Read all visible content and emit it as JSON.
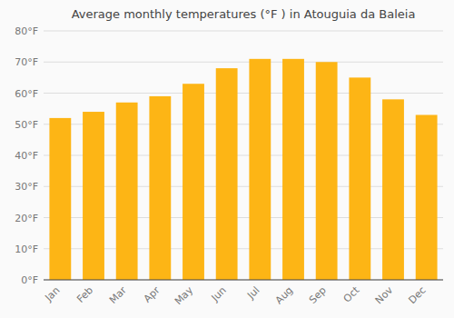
{
  "chart_data": {
    "type": "bar",
    "title": "Average monthly temperatures (°F ) in Atouguia da Baleia",
    "categories": [
      "Jan",
      "Feb",
      "Mar",
      "Apr",
      "May",
      "Jun",
      "Jul",
      "Aug",
      "Sep",
      "Oct",
      "Nov",
      "Dec"
    ],
    "values": [
      52,
      54,
      57,
      59,
      63,
      68,
      71,
      71,
      70,
      65,
      58,
      53
    ],
    "color": "#FDB515",
    "ylim": [
      0,
      80
    ],
    "yticks": [
      {
        "value": 0,
        "label": "0°F"
      },
      {
        "value": 10,
        "label": "10°F"
      },
      {
        "value": 20,
        "label": "20°F"
      },
      {
        "value": 30,
        "label": "30°F"
      },
      {
        "value": 40,
        "label": "40°F"
      },
      {
        "value": 50,
        "label": "50°F"
      },
      {
        "value": 60,
        "label": "60°F"
      },
      {
        "value": 70,
        "label": "70°F"
      },
      {
        "value": 80,
        "label": "80°F"
      }
    ],
    "grid": true
  }
}
